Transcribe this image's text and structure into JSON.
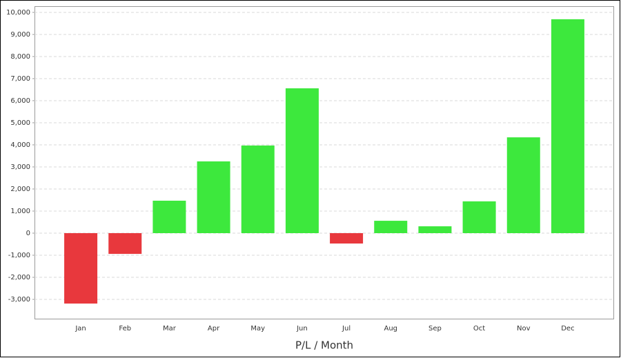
{
  "chart_data": {
    "type": "bar",
    "x_label": "P/L / Month",
    "categories": [
      "Jan",
      "Feb",
      "Mar",
      "Apr",
      "May",
      "Jun",
      "Jul",
      "Aug",
      "Sep",
      "Oct",
      "Nov",
      "Dec"
    ],
    "values": [
      -3190,
      -940,
      1470,
      3250,
      3970,
      6560,
      -470,
      560,
      310,
      1440,
      4340,
      9690
    ],
    "colors": [
      "#e8383d",
      "#e8383d",
      "#3de83d",
      "#3de83d",
      "#3de83d",
      "#3de83d",
      "#e8383d",
      "#3de83d",
      "#3de83d",
      "#3de83d",
      "#3de83d",
      "#3de83d"
    ],
    "ylim": [
      -3875,
      10280
    ],
    "yticks": [
      {
        "value": -3000,
        "label": "-3,000"
      },
      {
        "value": -2000,
        "label": "-2,000"
      },
      {
        "value": -1000,
        "label": "-1,000"
      },
      0,
      {
        "value": 1000,
        "label": "1,000"
      },
      {
        "value": 2000,
        "label": "2,000"
      },
      {
        "value": 3000,
        "label": "3,000"
      },
      {
        "value": 4000,
        "label": "4,000"
      },
      {
        "value": 5000,
        "label": "5,000"
      },
      {
        "value": 6000,
        "label": "6,000"
      },
      {
        "value": 7000,
        "label": "7,000"
      },
      {
        "value": 8000,
        "label": "8,000"
      },
      {
        "value": 9000,
        "label": "9,000"
      },
      {
        "value": 10000,
        "label": "10,000"
      }
    ],
    "grid": true
  }
}
